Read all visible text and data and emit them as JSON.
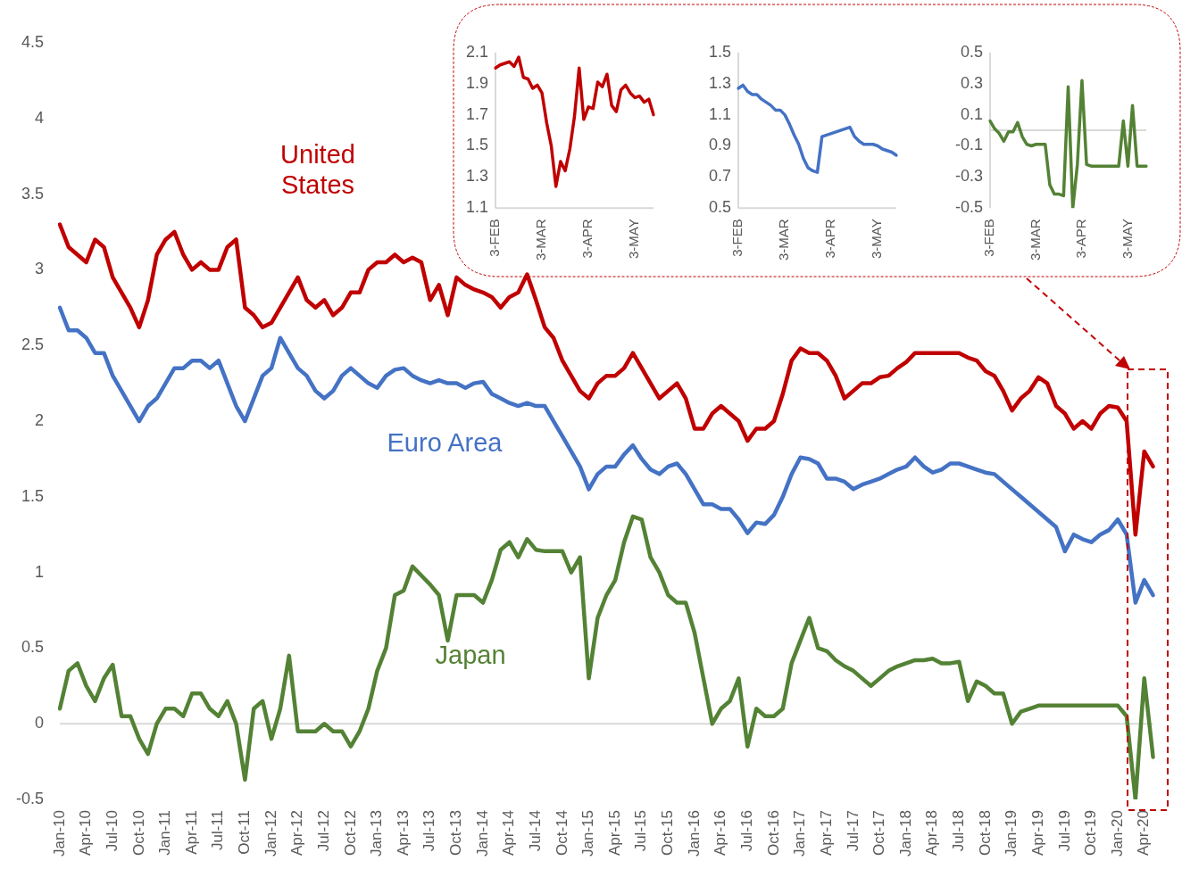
{
  "chart_data": [
    {
      "type": "line",
      "categories": [
        "Jan-10",
        null,
        null,
        "Apr-10",
        null,
        null,
        "Jul-10",
        null,
        null,
        "Oct-10",
        null,
        null,
        "Jan-11",
        null,
        null,
        "Apr-11",
        null,
        null,
        "Jul-11",
        null,
        null,
        "Oct-11",
        null,
        null,
        "Jan-12",
        null,
        null,
        "Apr-12",
        null,
        null,
        "Jul-12",
        null,
        null,
        "Oct-12",
        null,
        null,
        "Jan-13",
        null,
        null,
        "Apr-13",
        null,
        null,
        "Jul-13",
        null,
        null,
        "Oct-13",
        null,
        null,
        "Jan-14",
        null,
        null,
        "Apr-14",
        null,
        null,
        "Jul-14",
        null,
        null,
        "Oct-14",
        null,
        null,
        "Jan-15",
        null,
        null,
        "Apr-15",
        null,
        null,
        "Jul-15",
        null,
        null,
        "Oct-15",
        null,
        null,
        "Jan-16",
        null,
        null,
        "Apr-16",
        null,
        null,
        "Jul-16",
        null,
        null,
        "Oct-16",
        null,
        null,
        "Jan-17",
        null,
        null,
        "Apr-17",
        null,
        null,
        "Jul-17",
        null,
        null,
        "Oct-17",
        null,
        null,
        "Jan-18",
        null,
        null,
        "Apr-18",
        null,
        null,
        "Jul-18",
        null,
        null,
        "Oct-18",
        null,
        null,
        "Jan-19",
        null,
        null,
        "Apr-19",
        null,
        null,
        "Jul-19",
        null,
        null,
        "Oct-19",
        null,
        null,
        "Jan-20",
        null,
        null,
        "Apr-20",
        null
      ],
      "series": [
        {
          "name": "United States",
          "color": "#c00000",
          "values": [
            3.3,
            3.15,
            3.1,
            3.05,
            3.2,
            3.15,
            2.95,
            2.85,
            2.75,
            2.62,
            2.8,
            3.1,
            3.2,
            3.25,
            3.1,
            3.0,
            3.05,
            3.0,
            3.0,
            3.15,
            3.2,
            2.75,
            2.7,
            2.62,
            2.65,
            2.75,
            2.85,
            2.95,
            2.8,
            2.75,
            2.8,
            2.7,
            2.75,
            2.85,
            2.85,
            3.0,
            3.05,
            3.05,
            3.1,
            3.05,
            3.08,
            3.05,
            2.8,
            2.9,
            2.7,
            2.95,
            2.9,
            2.87,
            2.85,
            2.82,
            2.75,
            2.82,
            2.85,
            2.97,
            2.8,
            2.62,
            2.55,
            2.4,
            2.3,
            2.2,
            2.15,
            2.25,
            2.3,
            2.3,
            2.35,
            2.45,
            2.35,
            2.25,
            2.15,
            2.2,
            2.25,
            2.15,
            1.95,
            1.95,
            2.05,
            2.1,
            2.05,
            2.0,
            1.87,
            1.95,
            1.95,
            2.0,
            2.18,
            2.4,
            2.48,
            2.45,
            2.45,
            2.4,
            2.3,
            2.15,
            2.2,
            2.25,
            2.25,
            2.29,
            2.3,
            2.35,
            2.39,
            2.45,
            2.45,
            2.45,
            2.45,
            2.45,
            2.45,
            2.42,
            2.4,
            2.33,
            2.3,
            2.2,
            2.07,
            2.15,
            2.2,
            2.29,
            2.25,
            2.1,
            2.05,
            1.95,
            2.0,
            1.95,
            2.05,
            2.1,
            2.09,
            2.0,
            1.25,
            1.8,
            1.7
          ]
        },
        {
          "name": "Euro Area",
          "color": "#4472c4",
          "values": [
            2.75,
            2.6,
            2.6,
            2.55,
            2.45,
            2.45,
            2.3,
            2.2,
            2.1,
            2.0,
            2.1,
            2.15,
            2.25,
            2.35,
            2.35,
            2.4,
            2.4,
            2.35,
            2.4,
            2.25,
            2.1,
            2.0,
            2.15,
            2.3,
            2.35,
            2.55,
            2.45,
            2.35,
            2.3,
            2.2,
            2.15,
            2.2,
            2.3,
            2.35,
            2.3,
            2.25,
            2.22,
            2.3,
            2.34,
            2.35,
            2.3,
            2.27,
            2.25,
            2.27,
            2.25,
            2.25,
            2.22,
            2.25,
            2.26,
            2.18,
            2.15,
            2.12,
            2.1,
            2.12,
            2.1,
            2.1,
            2.0,
            1.9,
            1.8,
            1.7,
            1.55,
            1.65,
            1.7,
            1.7,
            1.78,
            1.84,
            1.75,
            1.68,
            1.65,
            1.7,
            1.72,
            1.65,
            1.55,
            1.45,
            1.45,
            1.42,
            1.42,
            1.35,
            1.26,
            1.33,
            1.32,
            1.38,
            1.5,
            1.65,
            1.76,
            1.75,
            1.72,
            1.62,
            1.62,
            1.6,
            1.55,
            1.58,
            1.6,
            1.62,
            1.65,
            1.68,
            1.7,
            1.76,
            1.7,
            1.66,
            1.68,
            1.72,
            1.72,
            1.7,
            1.68,
            1.66,
            1.65,
            1.6,
            1.55,
            1.5,
            1.45,
            1.4,
            1.35,
            1.3,
            1.14,
            1.25,
            1.22,
            1.2,
            1.25,
            1.28,
            1.35,
            1.25,
            0.8,
            0.95,
            0.85
          ]
        },
        {
          "name": "Japan",
          "color": "#548235",
          "values": [
            0.1,
            0.35,
            0.4,
            0.25,
            0.15,
            0.3,
            0.39,
            0.05,
            0.05,
            -0.1,
            -0.2,
            0.0,
            0.1,
            0.1,
            0.05,
            0.2,
            0.2,
            0.1,
            0.05,
            0.15,
            0.0,
            -0.37,
            0.1,
            0.15,
            -0.1,
            0.1,
            0.45,
            -0.05,
            -0.05,
            -0.05,
            0.0,
            -0.05,
            -0.05,
            -0.15,
            -0.05,
            0.1,
            0.35,
            0.5,
            0.85,
            0.88,
            1.04,
            0.98,
            0.92,
            0.85,
            0.55,
            0.85,
            0.85,
            0.85,
            0.8,
            0.95,
            1.15,
            1.2,
            1.1,
            1.22,
            1.15,
            1.14,
            1.14,
            1.14,
            1.0,
            1.1,
            0.3,
            0.7,
            0.85,
            0.95,
            1.2,
            1.37,
            1.35,
            1.1,
            1.0,
            0.85,
            0.8,
            0.8,
            0.6,
            0.3,
            0.0,
            0.1,
            0.15,
            0.3,
            -0.15,
            0.1,
            0.05,
            0.05,
            0.1,
            0.4,
            0.55,
            0.7,
            0.5,
            0.48,
            0.42,
            0.38,
            0.35,
            0.3,
            0.25,
            0.3,
            0.35,
            0.38,
            0.4,
            0.42,
            0.42,
            0.43,
            0.4,
            0.4,
            0.41,
            0.15,
            0.28,
            0.25,
            0.2,
            0.2,
            0.0,
            0.08,
            0.1,
            0.12,
            0.12,
            0.12,
            0.12,
            0.12,
            0.12,
            0.12,
            0.12,
            0.12,
            0.12,
            0.05,
            -0.5,
            0.3,
            -0.22
          ]
        }
      ],
      "ylim": [
        -0.5,
        4.5
      ],
      "yticks": [
        -0.5,
        0,
        0.5,
        1,
        1.5,
        2,
        2.5,
        3,
        3.5,
        4,
        4.5
      ]
    },
    {
      "type": "line",
      "categories": [
        "3-FEB",
        null,
        null,
        null,
        null,
        null,
        null,
        null,
        null,
        null,
        "3-MAR",
        null,
        null,
        null,
        null,
        null,
        null,
        null,
        null,
        null,
        "3-APR",
        null,
        null,
        null,
        null,
        null,
        null,
        null,
        null,
        null,
        "3-MAY",
        null,
        null,
        null,
        null
      ],
      "series": [
        {
          "color": "#c00000",
          "values": [
            2.0,
            2.02,
            2.03,
            2.04,
            2.01,
            2.07,
            1.94,
            1.93,
            1.87,
            1.89,
            1.84,
            1.65,
            1.5,
            1.24,
            1.4,
            1.34,
            1.48,
            1.69,
            2.0,
            1.67,
            1.75,
            1.74,
            1.91,
            1.88,
            1.96,
            1.76,
            1.72,
            1.86,
            1.89,
            1.84,
            1.81,
            1.82,
            1.78,
            1.8,
            1.7
          ]
        }
      ],
      "ylim": [
        1.1,
        2.1
      ],
      "yticks": [
        1.1,
        1.3,
        1.5,
        1.7,
        1.9,
        2.1
      ]
    },
    {
      "type": "line",
      "categories": [
        "3-FEB",
        null,
        null,
        null,
        null,
        null,
        null,
        null,
        null,
        null,
        "3-MAR",
        null,
        null,
        null,
        null,
        null,
        null,
        null,
        null,
        null,
        "3-APR",
        null,
        null,
        null,
        null,
        null,
        null,
        null,
        null,
        null,
        "3-MAY",
        null,
        null,
        null,
        null
      ],
      "series": [
        {
          "color": "#4472c4",
          "values": [
            1.27,
            1.29,
            1.25,
            1.23,
            1.23,
            1.2,
            1.18,
            1.16,
            1.13,
            1.13,
            1.1,
            1.04,
            0.97,
            0.91,
            0.82,
            0.76,
            0.74,
            0.73,
            0.96,
            0.97,
            0.98,
            0.99,
            1.0,
            1.01,
            1.02,
            0.96,
            0.93,
            0.91,
            0.91,
            0.91,
            0.9,
            0.88,
            0.87,
            0.86,
            0.84
          ]
        }
      ],
      "ylim": [
        0.5,
        1.5
      ],
      "yticks": [
        0.5,
        0.7,
        0.9,
        1.1,
        1.3,
        1.5
      ]
    },
    {
      "type": "line",
      "categories": [
        "3-FEB",
        null,
        null,
        null,
        null,
        null,
        null,
        null,
        null,
        null,
        "3-MAR",
        null,
        null,
        null,
        null,
        null,
        null,
        null,
        null,
        null,
        "3-APR",
        null,
        null,
        null,
        null,
        null,
        null,
        null,
        null,
        null,
        "3-MAY",
        null,
        null,
        null,
        null
      ],
      "series": [
        {
          "color": "#548235",
          "values": [
            0.06,
            0.01,
            -0.02,
            -0.07,
            -0.01,
            -0.01,
            0.05,
            -0.04,
            -0.09,
            -0.1,
            -0.09,
            -0.09,
            -0.09,
            -0.35,
            -0.41,
            -0.41,
            -0.42,
            0.28,
            -0.5,
            -0.22,
            0.32,
            -0.22,
            -0.23,
            -0.23,
            -0.23,
            -0.23,
            -0.23,
            -0.23,
            -0.23,
            0.06,
            -0.23,
            0.16,
            -0.23,
            -0.23,
            -0.23
          ]
        }
      ],
      "ylim": [
        -0.5,
        0.5
      ],
      "yticks": [
        -0.5,
        -0.3,
        -0.1,
        0.1,
        0.3,
        0.5
      ]
    }
  ]
}
